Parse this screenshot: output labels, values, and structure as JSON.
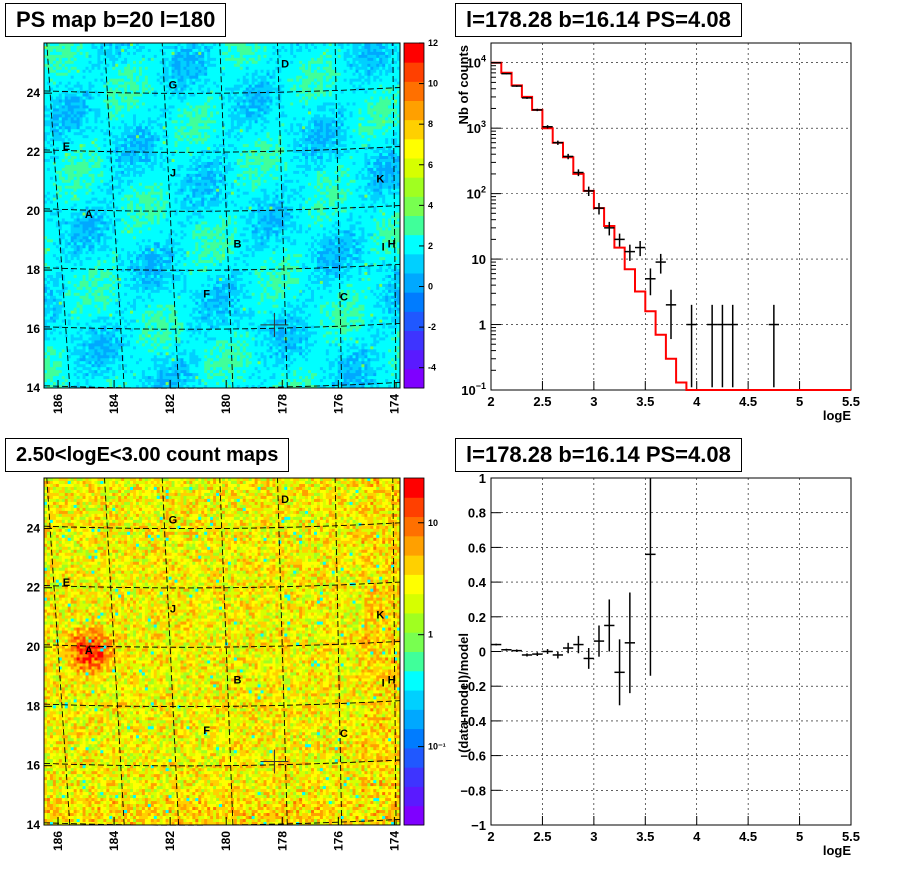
{
  "panels": {
    "ps_map_title": "PS map b=20 l=180",
    "count_map_title": "2.50<logE<3.00 count maps",
    "spectrum_title": "l=178.28 b=16.14 PS=4.08",
    "residual_title": "l=178.28 b=16.14 PS=4.08"
  },
  "maps": {
    "x_ticks": [
      "186",
      "184",
      "182",
      "180",
      "178",
      "176",
      "174"
    ],
    "y_ticks": [
      "14",
      "16",
      "18",
      "20",
      "22",
      "24"
    ],
    "x_range": [
      186.5,
      173.8
    ],
    "y_range": [
      14,
      25.7
    ],
    "labels": [
      {
        "t": "D",
        "l": 177.9,
        "b": 25.0
      },
      {
        "t": "G",
        "l": 181.9,
        "b": 24.3
      },
      {
        "t": "E",
        "l": 185.7,
        "b": 22.2
      },
      {
        "t": "J",
        "l": 181.9,
        "b": 21.3
      },
      {
        "t": "K",
        "l": 174.5,
        "b": 21.1
      },
      {
        "t": "A",
        "l": 184.9,
        "b": 19.9
      },
      {
        "t": "B",
        "l": 179.6,
        "b": 18.9
      },
      {
        "t": "I",
        "l": 174.4,
        "b": 18.8
      },
      {
        "t": "H",
        "l": 174.1,
        "b": 18.9
      },
      {
        "t": "F",
        "l": 180.7,
        "b": 17.2
      },
      {
        "t": "C",
        "l": 175.8,
        "b": 17.1
      }
    ],
    "source_marker": {
      "l": 178.28,
      "b": 16.14
    },
    "ps_colorbar_ticks": [
      "12",
      "10",
      "8",
      "6",
      "4",
      "2",
      "0",
      "-2",
      "-4"
    ],
    "ps_colorbar_range": [
      -5,
      12
    ],
    "count_colorbar_ticks": [
      "10",
      "1",
      "10⁻¹"
    ],
    "count_colorbar_log_range": [
      -1.7,
      1.4
    ],
    "palette": [
      "#7f00ff",
      "#5a1aff",
      "#3e34ff",
      "#2058ff",
      "#007cff",
      "#00a8ff",
      "#00d0ff",
      "#00ffff",
      "#40ff9a",
      "#78ff50",
      "#a0ff20",
      "#d6ff00",
      "#ffff00",
      "#ffd000",
      "#ffa000",
      "#ff7000",
      "#ff4000",
      "#ff0000"
    ]
  },
  "chart_data": [
    {
      "type": "line",
      "title": "l=178.28 b=16.14 PS=4.08",
      "xlabel": "logE",
      "ylabel": "Nb of counts",
      "xlim": [
        2,
        5.5
      ],
      "ylim": [
        0.1,
        20000
      ],
      "yscale": "log",
      "x_ticks": [
        "2",
        "2.5",
        "3",
        "3.5",
        "4",
        "4.5",
        "5",
        "5.5"
      ],
      "y_ticks": [
        {
          "v": 10000,
          "base": "10",
          "exp": "4"
        },
        {
          "v": 1000,
          "base": "10",
          "exp": "3"
        },
        {
          "v": 100,
          "base": "10",
          "exp": "2"
        },
        {
          "v": 10,
          "base": "10",
          "exp": ""
        },
        {
          "v": 1,
          "base": "1",
          "exp": ""
        },
        {
          "v": 0.1,
          "base": "10",
          "exp": "−1"
        }
      ],
      "grid": true,
      "series": [
        {
          "color": "#ff0000",
          "bin_edges": [
            2.0,
            2.1,
            2.2,
            2.3,
            2.4,
            2.5,
            2.6,
            2.7,
            2.8,
            2.9,
            3.0,
            3.1,
            3.2,
            3.3,
            3.4,
            3.5,
            3.6,
            3.7,
            3.8,
            3.9,
            4.0,
            4.1,
            4.2,
            4.3,
            4.4,
            4.5,
            4.6,
            4.7,
            4.8,
            4.9,
            5.0,
            5.1,
            5.2,
            5.3,
            5.4,
            5.5
          ],
          "values": [
            10000,
            7000,
            4500,
            3000,
            1900,
            1000,
            600,
            360,
            200,
            110,
            60,
            32,
            15,
            7,
            3.2,
            1.6,
            0.7,
            0.3,
            0.13,
            0.1,
            0.1,
            0.1,
            0.1,
            0.1,
            0.1,
            0.1,
            0.1,
            0.1,
            0.1,
            0.1,
            0.1,
            0.1,
            0.1,
            0.1,
            0.1
          ]
        },
        {
          "color": "#000000",
          "points": [
            {
              "x": 2.05,
              "y": 10000,
              "lo": 9800,
              "hi": 10200
            },
            {
              "x": 2.15,
              "y": 6800,
              "lo": 6650,
              "hi": 6950
            },
            {
              "x": 2.25,
              "y": 4400,
              "lo": 4280,
              "hi": 4520
            },
            {
              "x": 2.35,
              "y": 2900,
              "lo": 2800,
              "hi": 3000
            },
            {
              "x": 2.45,
              "y": 1900,
              "lo": 1820,
              "hi": 1980
            },
            {
              "x": 2.55,
              "y": 1050,
              "lo": 990,
              "hi": 1110
            },
            {
              "x": 2.65,
              "y": 600,
              "lo": 555,
              "hi": 645
            },
            {
              "x": 2.75,
              "y": 370,
              "lo": 335,
              "hi": 405
            },
            {
              "x": 2.85,
              "y": 210,
              "lo": 185,
              "hi": 235
            },
            {
              "x": 2.95,
              "y": 110,
              "lo": 92,
              "hi": 128
            },
            {
              "x": 3.05,
              "y": 60,
              "lo": 48,
              "hi": 72
            },
            {
              "x": 3.15,
              "y": 30,
              "lo": 23,
              "hi": 37
            },
            {
              "x": 3.25,
              "y": 20,
              "lo": 15.5,
              "hi": 24.5
            },
            {
              "x": 3.35,
              "y": 13,
              "lo": 9.4,
              "hi": 16.6
            },
            {
              "x": 3.45,
              "y": 15,
              "lo": 11.1,
              "hi": 18.9
            },
            {
              "x": 3.55,
              "y": 5,
              "lo": 2.8,
              "hi": 7.2
            },
            {
              "x": 3.65,
              "y": 9,
              "lo": 6,
              "hi": 12
            },
            {
              "x": 3.75,
              "y": 2,
              "lo": 0.6,
              "hi": 3.4
            },
            {
              "x": 3.95,
              "y": 1,
              "lo": 0.11,
              "hi": 2
            },
            {
              "x": 4.15,
              "y": 1,
              "lo": 0.11,
              "hi": 2
            },
            {
              "x": 4.25,
              "y": 1,
              "lo": 0.11,
              "hi": 2
            },
            {
              "x": 4.35,
              "y": 1,
              "lo": 0.11,
              "hi": 2
            },
            {
              "x": 4.75,
              "y": 1,
              "lo": 0.11,
              "hi": 2
            }
          ]
        }
      ]
    },
    {
      "type": "scatter",
      "title": "l=178.28 b=16.14 PS=4.08",
      "xlabel": "logE",
      "ylabel": "(data-model)/model",
      "xlim": [
        2,
        5.5
      ],
      "ylim": [
        -1,
        1
      ],
      "x_ticks": [
        "2",
        "2.5",
        "3",
        "3.5",
        "4",
        "4.5",
        "5",
        "5.5"
      ],
      "y_ticks": [
        "1",
        "0.8",
        "0.6",
        "0.4",
        "0.2",
        "0",
        "−0.2",
        "−0.4",
        "−0.6",
        "−0.8",
        "−1"
      ],
      "grid": true,
      "series": [
        {
          "color": "#000000",
          "points": [
            {
              "x": 2.05,
              "y": 0.04,
              "err": 0.005
            },
            {
              "x": 2.15,
              "y": 0.01,
              "err": 0.006
            },
            {
              "x": 2.25,
              "y": 0.005,
              "err": 0.007
            },
            {
              "x": 2.35,
              "y": -0.02,
              "err": 0.009
            },
            {
              "x": 2.45,
              "y": -0.015,
              "err": 0.011
            },
            {
              "x": 2.55,
              "y": 0.0,
              "err": 0.014
            },
            {
              "x": 2.65,
              "y": -0.02,
              "err": 0.02
            },
            {
              "x": 2.75,
              "y": 0.02,
              "err": 0.03
            },
            {
              "x": 2.85,
              "y": 0.04,
              "err": 0.05
            },
            {
              "x": 2.95,
              "y": -0.04,
              "err": 0.06
            },
            {
              "x": 3.05,
              "y": 0.06,
              "err": 0.09
            },
            {
              "x": 3.15,
              "y": 0.15,
              "err": 0.15
            },
            {
              "x": 3.25,
              "y": -0.12,
              "err": 0.19
            },
            {
              "x": 3.35,
              "y": 0.05,
              "err": 0.29
            },
            {
              "x": 3.55,
              "y": 0.56,
              "err": 0.7
            }
          ]
        }
      ]
    }
  ]
}
